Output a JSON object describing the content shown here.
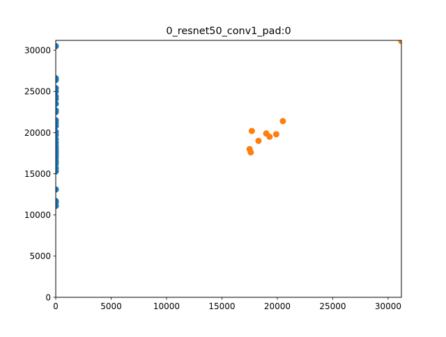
{
  "chart_data": {
    "type": "scatter",
    "title": "0_resnet50_conv1_pad:0",
    "xlabel": "",
    "ylabel": "",
    "xlim": [
      0,
      31200
    ],
    "ylim": [
      0,
      31200
    ],
    "x_ticks": [
      0,
      5000,
      10000,
      15000,
      20000,
      25000,
      30000
    ],
    "y_ticks": [
      0,
      5000,
      10000,
      15000,
      20000,
      25000,
      30000
    ],
    "grid": false,
    "legend": "none",
    "series": [
      {
        "color": "#1f77b4",
        "points": [
          [
            0,
            30500
          ],
          [
            0,
            26600
          ],
          [
            0,
            26400
          ],
          [
            0,
            25400
          ],
          [
            0,
            25000
          ],
          [
            0,
            24400
          ],
          [
            0,
            24100
          ],
          [
            0,
            23500
          ],
          [
            0,
            22700
          ],
          [
            0,
            22500
          ],
          [
            0,
            21500
          ],
          [
            0,
            21200
          ],
          [
            0,
            20800
          ],
          [
            0,
            20100
          ],
          [
            0,
            19700
          ],
          [
            0,
            19200
          ],
          [
            0,
            18800
          ],
          [
            0,
            18400
          ],
          [
            0,
            18100
          ],
          [
            0,
            17800
          ],
          [
            0,
            17500
          ],
          [
            0,
            17200
          ],
          [
            0,
            16900
          ],
          [
            0,
            16500
          ],
          [
            0,
            16200
          ],
          [
            0,
            15700
          ],
          [
            0,
            15300
          ],
          [
            0,
            13100
          ],
          [
            0,
            11700
          ],
          [
            0,
            11500
          ],
          [
            0,
            11100
          ]
        ]
      },
      {
        "color": "#ff7f0e",
        "points": [
          [
            31200,
            31100
          ],
          [
            20500,
            21400
          ],
          [
            17700,
            20200
          ],
          [
            19000,
            19900
          ],
          [
            19900,
            19800
          ],
          [
            19300,
            19500
          ],
          [
            18300,
            19000
          ],
          [
            17500,
            18000
          ],
          [
            17600,
            17600
          ]
        ]
      }
    ]
  }
}
